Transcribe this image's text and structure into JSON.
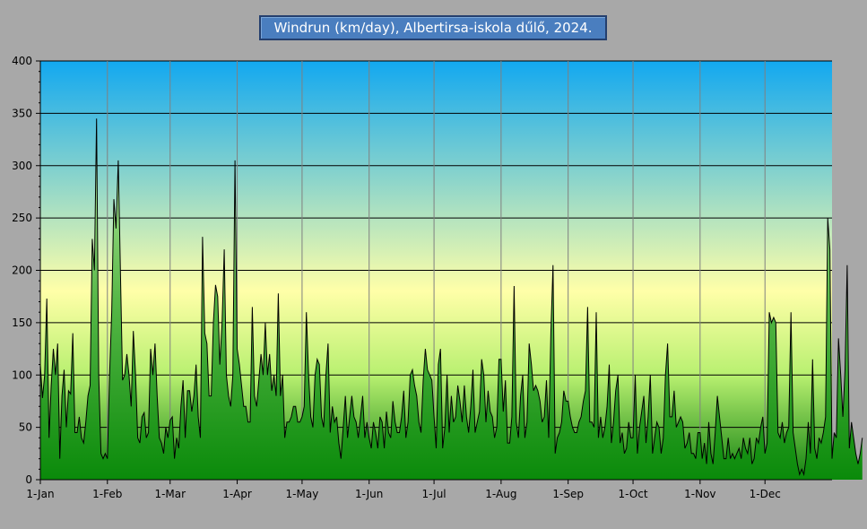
{
  "title": "Windrun (km/day), Albertirsa-iskola dűlő, 2024.",
  "chart_data": {
    "type": "area",
    "title": "Windrun (km/day), Albertirsa-iskola dűlő, 2024.",
    "xlabel": "",
    "ylabel": "",
    "ylim": [
      0,
      400
    ],
    "yticks": [
      0,
      50,
      100,
      150,
      200,
      250,
      300,
      350,
      400
    ],
    "xlim_days": [
      0,
      366
    ],
    "month_labels": [
      "1-Jan",
      "1-Feb",
      "1-Mar",
      "1-Apr",
      "1-May",
      "1-Jun",
      "1-Jul",
      "1-Aug",
      "1-Sep",
      "1-Oct",
      "1-Nov",
      "1-Dec"
    ],
    "month_starts": [
      0,
      31,
      60,
      91,
      121,
      152,
      182,
      213,
      244,
      274,
      305,
      335
    ],
    "grid": true,
    "colors": {
      "line": "#000000",
      "fill_top": "#c8f5b0",
      "fill_bottom": "#0a8a0a",
      "plot_top": "#12a8f0",
      "plot_mid": "#ffffa8",
      "plot_bottom": "#108010"
    },
    "series": [
      {
        "values": [
          110,
          78,
          100,
          173,
          40,
          90,
          125,
          100,
          130,
          20,
          80,
          105,
          50,
          85,
          82,
          140,
          45,
          45,
          60,
          40,
          35,
          55,
          80,
          90,
          230,
          200,
          345,
          100,
          25,
          20,
          25,
          20,
          100,
          160,
          268,
          240,
          305,
          200,
          95,
          100,
          120,
          100,
          70,
          142,
          100,
          40,
          35,
          60,
          64,
          40,
          45,
          125,
          100,
          130,
          80,
          40,
          35,
          25,
          50,
          40,
          57,
          60,
          20,
          40,
          30,
          70,
          95,
          40,
          85,
          85,
          65,
          80,
          110,
          60,
          40,
          232,
          140,
          130,
          80,
          80,
          150,
          186,
          175,
          110,
          150,
          220,
          100,
          80,
          70,
          100,
          305,
          125,
          110,
          90,
          70,
          70,
          55,
          55,
          165,
          80,
          70,
          95,
          120,
          100,
          150,
          100,
          120,
          85,
          100,
          80,
          178,
          80,
          100,
          40,
          55,
          55,
          60,
          70,
          70,
          55,
          55,
          60,
          70,
          160,
          100,
          60,
          50,
          100,
          115,
          110,
          60,
          50,
          100,
          130,
          45,
          70,
          55,
          60,
          35,
          20,
          50,
          80,
          40,
          60,
          80,
          60,
          55,
          40,
          60,
          80,
          40,
          55,
          40,
          30,
          55,
          45,
          30,
          60,
          55,
          30,
          65,
          45,
          40,
          75,
          55,
          45,
          45,
          60,
          85,
          40,
          55,
          100,
          105,
          90,
          80,
          55,
          45,
          95,
          125,
          105,
          100,
          95,
          60,
          30,
          110,
          125,
          30,
          50,
          100,
          45,
          80,
          55,
          60,
          90,
          75,
          55,
          90,
          60,
          45,
          70,
          105,
          45,
          55,
          65,
          115,
          100,
          55,
          85,
          65,
          60,
          40,
          50,
          115,
          115,
          65,
          95,
          35,
          35,
          60,
          185,
          55,
          40,
          80,
          100,
          40,
          55,
          130,
          110,
          85,
          90,
          85,
          75,
          55,
          60,
          95,
          40,
          140,
          205,
          25,
          40,
          45,
          55,
          85,
          75,
          75,
          60,
          50,
          45,
          45,
          55,
          60,
          75,
          85,
          165,
          55,
          55,
          50,
          160,
          40,
          60,
          40,
          50,
          70,
          110,
          35,
          55,
          85,
          100,
          35,
          45,
          25,
          30,
          55,
          40,
          40,
          100,
          25,
          50,
          65,
          80,
          35,
          60,
          100,
          25,
          40,
          55,
          50,
          25,
          40,
          100,
          130,
          60,
          60,
          85,
          50,
          55,
          60,
          55,
          30,
          35,
          45,
          25,
          25,
          20,
          45,
          45,
          20,
          35,
          15,
          55,
          25,
          15,
          45,
          80,
          60,
          40,
          20,
          20,
          40,
          20,
          25,
          20,
          25,
          30,
          20,
          40,
          30,
          25,
          40,
          15,
          20,
          40,
          35,
          50,
          60,
          25,
          35,
          160,
          150,
          155,
          150,
          45,
          40,
          55,
          35,
          45,
          50,
          160,
          45,
          30,
          15,
          5,
          10,
          5,
          20,
          55,
          25,
          115,
          30,
          20,
          40,
          35,
          45,
          60,
          250,
          220,
          20,
          45,
          40,
          135,
          100,
          60,
          105,
          205,
          30,
          55,
          40,
          25,
          15,
          25,
          40
        ]
      }
    ]
  }
}
